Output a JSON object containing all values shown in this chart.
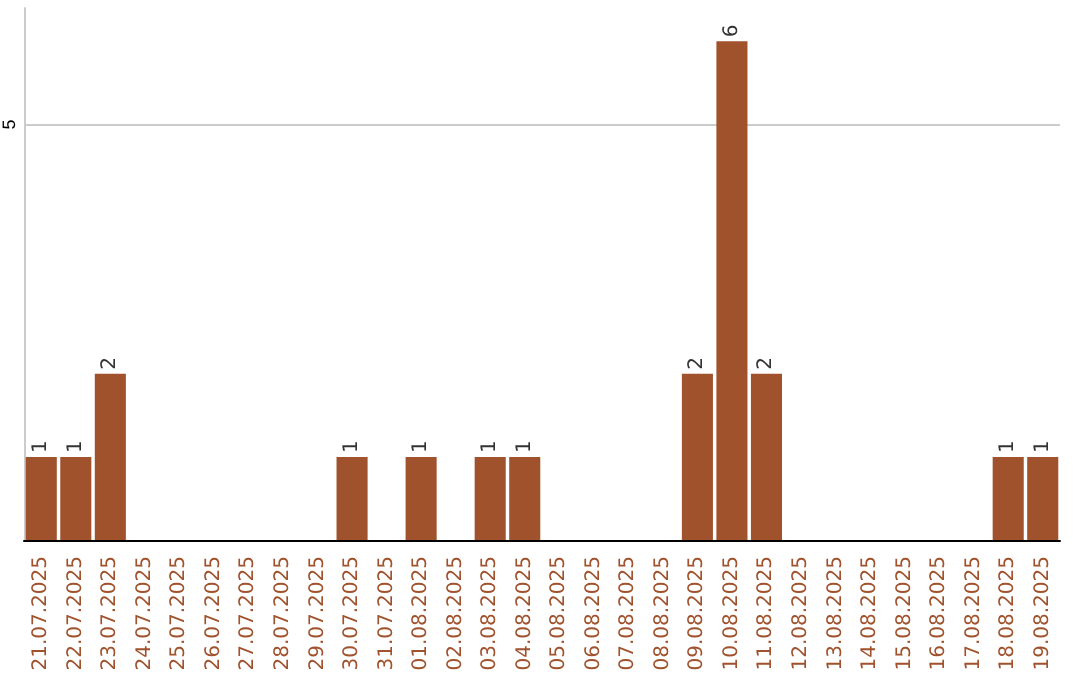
{
  "chart_data": {
    "type": "bar",
    "categories": [
      "21.07.2025",
      "22.07.2025",
      "23.07.2025",
      "24.07.2025",
      "25.07.2025",
      "26.07.2025",
      "27.07.2025",
      "28.07.2025",
      "29.07.2025",
      "30.07.2025",
      "31.07.2025",
      "01.08.2025",
      "02.08.2025",
      "03.08.2025",
      "04.08.2025",
      "05.08.2025",
      "06.08.2025",
      "07.08.2025",
      "08.08.2025",
      "09.08.2025",
      "10.08.2025",
      "11.08.2025",
      "12.08.2025",
      "13.08.2025",
      "14.08.2025",
      "15.08.2025",
      "16.08.2025",
      "17.08.2025",
      "18.08.2025",
      "19.08.2025"
    ],
    "values": [
      1,
      1,
      2,
      0,
      0,
      0,
      0,
      0,
      0,
      1,
      0,
      1,
      0,
      1,
      1,
      0,
      0,
      0,
      0,
      2,
      6,
      2,
      0,
      0,
      0,
      0,
      0,
      0,
      1,
      1
    ],
    "value_labels": [
      "1",
      "1",
      "2",
      null,
      null,
      null,
      null,
      null,
      null,
      "1",
      null,
      "1",
      null,
      "1",
      "1",
      null,
      null,
      null,
      null,
      "2",
      "6",
      "2",
      null,
      null,
      null,
      null,
      null,
      null,
      "1",
      "1"
    ],
    "color": "#a0522d",
    "ylim": [
      0,
      6.4
    ],
    "yticks": [
      5
    ],
    "grid": "y"
  }
}
